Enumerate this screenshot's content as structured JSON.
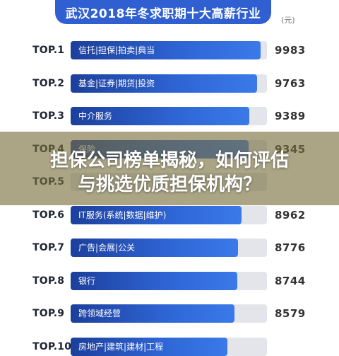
{
  "title": "武汉2018年冬求职期十大高薪行业",
  "unit": "(元)",
  "overlay": {
    "line1": "担保公司榜单揭秘，如何评估",
    "line2": "与挑选优质担保机构？"
  },
  "chart_data": {
    "type": "bar",
    "orientation": "horizontal",
    "xlim": [
      0,
      10300
    ],
    "rows": [
      {
        "rank": "TOP.1",
        "category": "信托|担保|拍卖|典当",
        "value": 9983
      },
      {
        "rank": "TOP.2",
        "category": "基金|证券|期货|投资",
        "value": 9763
      },
      {
        "rank": "TOP.3",
        "category": "中介服务",
        "value": 9389
      },
      {
        "rank": "TOP.4",
        "category": "保险",
        "value": 9345
      },
      {
        "rank": "TOP.5",
        "category": "",
        "value": null
      },
      {
        "rank": "TOP.6",
        "category": "IT服务(系统|数据|维护)",
        "value": 8962
      },
      {
        "rank": "TOP.7",
        "category": "广告|会展|公关",
        "value": 8776
      },
      {
        "rank": "TOP.8",
        "category": "银行",
        "value": 8744
      },
      {
        "rank": "TOP.9",
        "category": "跨领域经营",
        "value": 8579
      },
      {
        "rank": "TOP.10",
        "category": "房地产|建筑|建材|工程",
        "value": null
      }
    ]
  }
}
